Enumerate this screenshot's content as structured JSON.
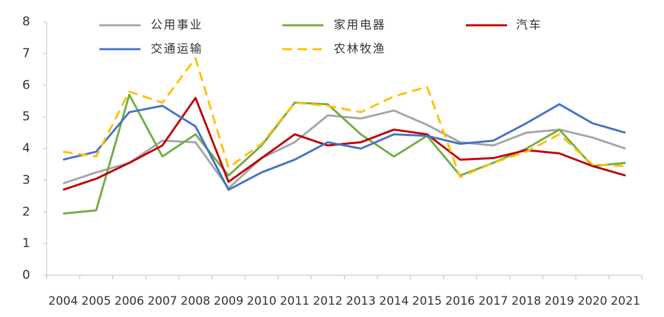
{
  "chart_data": {
    "type": "line",
    "categories": [
      "2004",
      "2005",
      "2006",
      "2007",
      "2008",
      "2009",
      "2010",
      "2011",
      "2012",
      "2013",
      "2014",
      "2015",
      "2016",
      "2017",
      "2018",
      "2019",
      "2020",
      "2021"
    ],
    "ylim": [
      0,
      8
    ],
    "yticks": [
      0,
      1,
      2,
      3,
      4,
      5,
      6,
      7,
      8
    ],
    "grid": false,
    "series": [
      {
        "name": "公用事业",
        "color": "#a5a5a5",
        "values": [
          2.9,
          3.25,
          3.55,
          4.25,
          4.2,
          2.75,
          3.7,
          4.2,
          5.05,
          4.95,
          5.2,
          4.75,
          4.2,
          4.1,
          4.5,
          4.6,
          4.35,
          4.0
        ]
      },
      {
        "name": "家用电器",
        "color": "#70ad47",
        "values": [
          1.95,
          2.05,
          5.7,
          3.75,
          4.45,
          3.15,
          4.1,
          5.45,
          5.4,
          4.45,
          3.75,
          4.4,
          3.15,
          3.55,
          4.0,
          4.6,
          3.45,
          3.55
        ]
      },
      {
        "name": "汽车",
        "color": "#c00000",
        "values": [
          2.7,
          3.05,
          3.55,
          4.1,
          5.6,
          2.95,
          3.7,
          4.45,
          4.1,
          4.2,
          4.6,
          4.45,
          3.65,
          3.7,
          3.95,
          3.85,
          3.45,
          3.15
        ]
      },
      {
        "name": "交通运输",
        "color": "#4472c4",
        "values": [
          3.65,
          3.9,
          5.15,
          5.35,
          4.7,
          2.7,
          3.25,
          3.65,
          4.2,
          4.0,
          4.45,
          4.4,
          4.15,
          4.25,
          4.8,
          5.4,
          4.8,
          4.5
        ]
      },
      {
        "name": "农林牧渔",
        "color": "#ffc000",
        "dashed": true,
        "values": [
          3.9,
          3.75,
          5.8,
          5.45,
          6.85,
          3.4,
          4.15,
          5.45,
          5.35,
          5.15,
          5.65,
          5.95,
          3.1,
          3.55,
          3.9,
          4.45,
          3.5,
          3.45
        ]
      }
    ]
  }
}
